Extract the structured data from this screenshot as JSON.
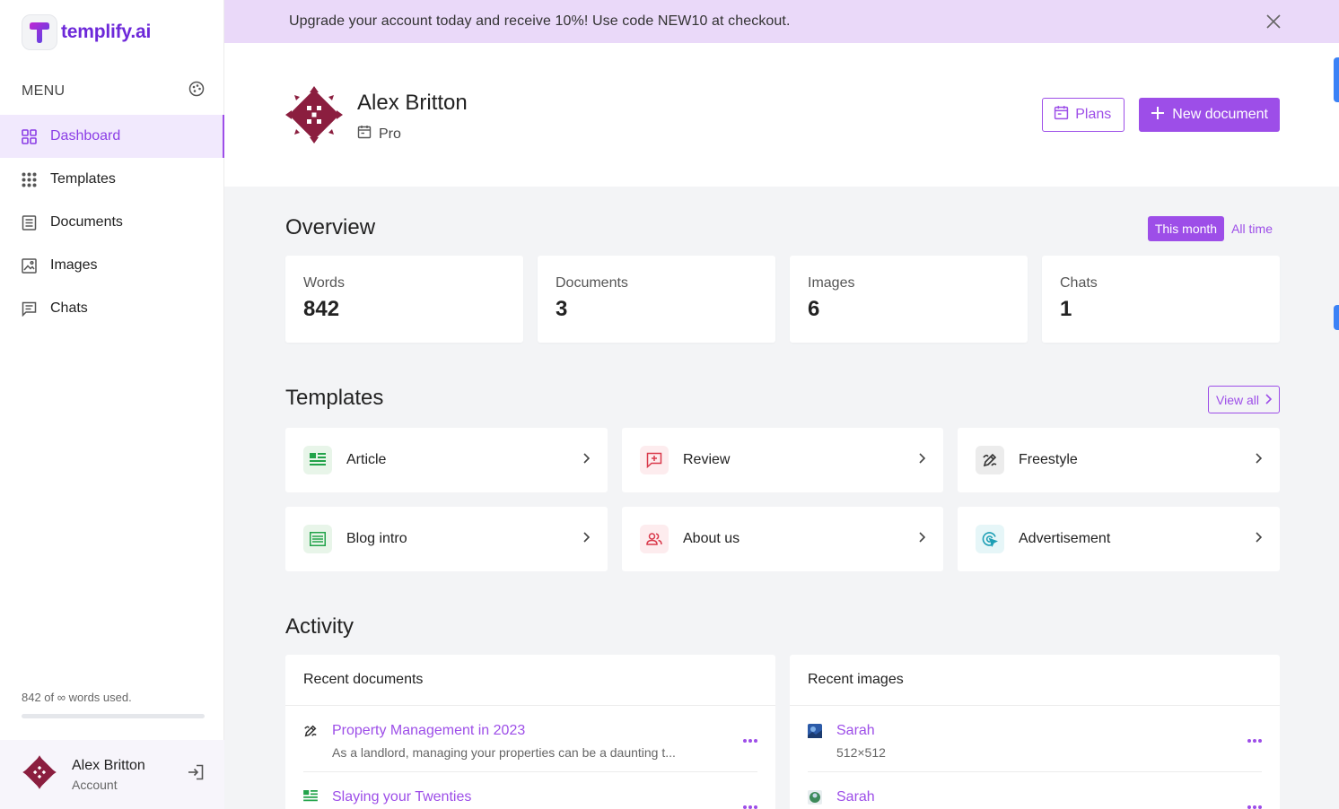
{
  "brand": {
    "name": "templify.ai"
  },
  "sidebar": {
    "menu_title": "MENU",
    "items": [
      {
        "label": "Dashboard",
        "icon": "grid-icon",
        "active": true
      },
      {
        "label": "Templates",
        "icon": "apps-icon",
        "active": false
      },
      {
        "label": "Documents",
        "icon": "document-icon",
        "active": false
      },
      {
        "label": "Images",
        "icon": "image-icon",
        "active": false
      },
      {
        "label": "Chats",
        "icon": "chat-icon",
        "active": false
      }
    ],
    "usage_text": "842 of ∞ words used.",
    "usage_fraction": 0.0
  },
  "account": {
    "name": "Alex Britton",
    "subtitle": "Account"
  },
  "banner": {
    "text": "Upgrade your account today and receive 10%! Use code NEW10 at checkout."
  },
  "header": {
    "name": "Alex Britton",
    "plan": "Pro",
    "plans_label": "Plans",
    "new_document_label": "New document"
  },
  "overview": {
    "title": "Overview",
    "this_month_label": "This month",
    "all_time_label": "All time",
    "stats": [
      {
        "label": "Words",
        "value": "842"
      },
      {
        "label": "Documents",
        "value": "3"
      },
      {
        "label": "Images",
        "value": "6"
      },
      {
        "label": "Chats",
        "value": "1"
      }
    ]
  },
  "templates": {
    "title": "Templates",
    "view_all_label": "View all",
    "items": [
      {
        "label": "Article",
        "icon": "article-icon"
      },
      {
        "label": "Review",
        "icon": "review-icon"
      },
      {
        "label": "Freestyle",
        "icon": "pen-icon"
      },
      {
        "label": "Blog intro",
        "icon": "list-icon"
      },
      {
        "label": "About us",
        "icon": "people-icon"
      },
      {
        "label": "Advertisement",
        "icon": "target-icon"
      }
    ]
  },
  "activity": {
    "title": "Activity",
    "recent_documents_title": "Recent documents",
    "recent_images_title": "Recent images",
    "documents": [
      {
        "title": "Property Management in 2023",
        "snippet": "As a landlord, managing your properties can be a daunting t..."
      },
      {
        "title": "Slaying your Twenties",
        "snippet": ""
      }
    ],
    "images": [
      {
        "title": "Sarah",
        "size": "512×512"
      },
      {
        "title": "Sarah",
        "size": ""
      }
    ]
  },
  "colors": {
    "accent": "#9d4ee8",
    "brand": "#6d28d9",
    "banner_bg": "#ead9f9",
    "avatar": "#8b1e3f"
  }
}
